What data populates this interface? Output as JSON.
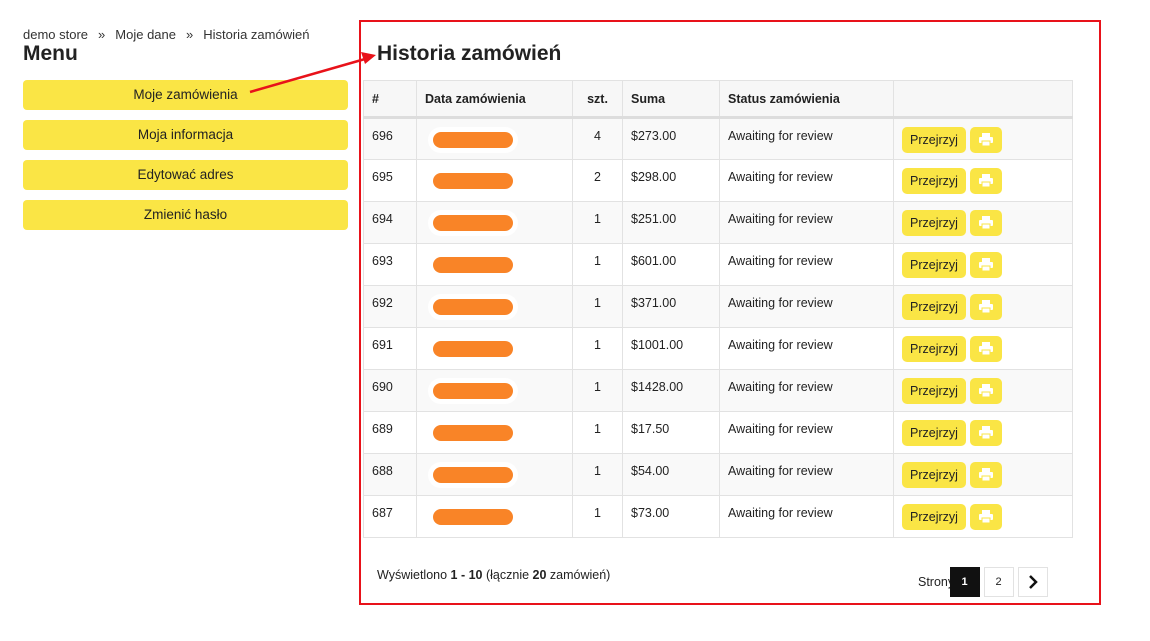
{
  "breadcrumb": [
    "demo store",
    "Moje dane",
    "Historia zamówień"
  ],
  "breadcrumb_sep": "»",
  "menu": {
    "title": "Menu",
    "items": [
      "Moje zamówienia",
      "Moja informacja",
      "Edytować adres",
      "Zmienić hasło"
    ]
  },
  "main": {
    "title": "Historia zamówień",
    "columns": [
      "#",
      "Data zamówienia",
      "szt.",
      "Suma",
      "Status zamówienia",
      ""
    ],
    "view_label": "Przejrzyj",
    "rows": [
      {
        "id": "696",
        "qty": "4",
        "sum": "$273.00",
        "status": "Awaiting for review"
      },
      {
        "id": "695",
        "qty": "2",
        "sum": "$298.00",
        "status": "Awaiting for review"
      },
      {
        "id": "694",
        "qty": "1",
        "sum": "$251.00",
        "status": "Awaiting for review"
      },
      {
        "id": "693",
        "qty": "1",
        "sum": "$601.00",
        "status": "Awaiting for review"
      },
      {
        "id": "692",
        "qty": "1",
        "sum": "$371.00",
        "status": "Awaiting for review"
      },
      {
        "id": "691",
        "qty": "1",
        "sum": "$1001.00",
        "status": "Awaiting for review"
      },
      {
        "id": "690",
        "qty": "1",
        "sum": "$1428.00",
        "status": "Awaiting for review"
      },
      {
        "id": "689",
        "qty": "1",
        "sum": "$17.50",
        "status": "Awaiting for review"
      },
      {
        "id": "688",
        "qty": "1",
        "sum": "$54.00",
        "status": "Awaiting for review"
      },
      {
        "id": "687",
        "qty": "1",
        "sum": "$73.00",
        "status": "Awaiting for review"
      }
    ]
  },
  "footer": {
    "prefix": "Wyświetlono ",
    "range": "1 - 10",
    "mid": " (łącznie ",
    "total": "20",
    "suffix": " zamówień)"
  },
  "pager": {
    "label": "Strony:",
    "pages": [
      "1",
      "2"
    ],
    "current": "1"
  },
  "colors": {
    "accent": "#fae545",
    "highlight": "#e8121a",
    "redaction": "#f98427"
  }
}
